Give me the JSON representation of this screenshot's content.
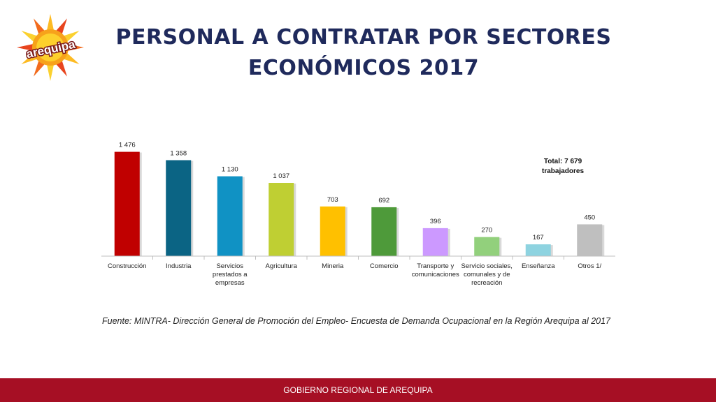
{
  "logo": {
    "text": "arequipa"
  },
  "title": {
    "line1": "PERSONAL A CONTRATAR POR SECTORES",
    "line2": "ECONÓMICOS 2017"
  },
  "chart_data": {
    "type": "bar",
    "categories": [
      [
        "Construcción"
      ],
      [
        "Industria"
      ],
      [
        "Servicios",
        "prestados a",
        "empresas"
      ],
      [
        "Agricultura"
      ],
      [
        "Mineria"
      ],
      [
        "Comercio"
      ],
      [
        "Transporte y",
        "comunicaciones"
      ],
      [
        "Servicio sociales,",
        "comunales y de",
        "recreación"
      ],
      [
        "Enseñanza"
      ],
      [
        "Otros 1/"
      ]
    ],
    "values": [
      1476,
      1358,
      1130,
      1037,
      703,
      692,
      396,
      270,
      167,
      450
    ],
    "data_labels": [
      "1 476",
      "1 358",
      "1 130",
      "1 037",
      "703",
      "692",
      "396",
      "270",
      "167",
      "450"
    ],
    "colors": [
      "#c00000",
      "#0b6484",
      "#1092c4",
      "#bfcf33",
      "#ffc000",
      "#4e9a3a",
      "#cc99ff",
      "#92d07c",
      "#8ed3e0",
      "#bfbfbf"
    ],
    "ylim": [
      0,
      1600
    ],
    "annotation": [
      "Total: 7 679",
      "trabajadores"
    ]
  },
  "source": "Fuente: MINTRA- Dirección General de Promoción del Empleo- Encuesta de Demanda Ocupacional en la Región Arequipa al 2017",
  "footer": "GOBIERNO REGIONAL DE AREQUIPA"
}
